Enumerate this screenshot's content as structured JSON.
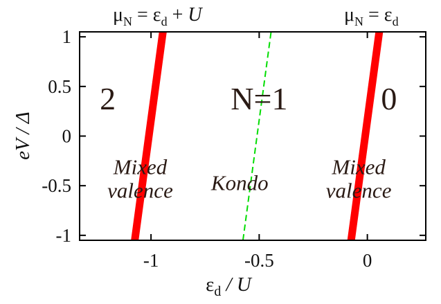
{
  "chart_data": {
    "type": "line",
    "xlabel": {
      "main": "ε",
      "sub": "d",
      "rest": " / U"
    },
    "ylabel": "eV / Δ",
    "xlim": [
      -1.33,
      0.27
    ],
    "ylim": [
      -1.05,
      1.05
    ],
    "x_ticks": [
      {
        "value": -1,
        "label": "-1"
      },
      {
        "value": -0.5,
        "label": "-0.5"
      },
      {
        "value": 0,
        "label": "0"
      }
    ],
    "y_ticks": [
      {
        "value": 1,
        "label": "1"
      },
      {
        "value": 0.5,
        "label": "0.5"
      },
      {
        "value": 0,
        "label": "0"
      },
      {
        "value": -0.5,
        "label": "-0.5"
      },
      {
        "value": -1,
        "label": "-1"
      }
    ],
    "series": [
      {
        "style": "solid-thick",
        "color": "#ff0000",
        "points": [
          [
            -1.075,
            -1.05
          ],
          [
            -0.945,
            1.05
          ]
        ]
      },
      {
        "style": "dashed",
        "color": "#00dd00",
        "points": [
          [
            -0.575,
            -1.05
          ],
          [
            -0.445,
            1.05
          ]
        ]
      },
      {
        "style": "solid-thick",
        "color": "#ff0000",
        "points": [
          [
            -0.075,
            -1.05
          ],
          [
            0.055,
            1.05
          ]
        ]
      }
    ],
    "region_labels": [
      {
        "text": "2",
        "x": -1.2,
        "y": 0.27,
        "style": "large"
      },
      {
        "text": "N=1",
        "x": -0.5,
        "y": 0.27,
        "style": "large"
      },
      {
        "text": "0",
        "x": 0.1,
        "y": 0.27,
        "style": "large"
      }
    ],
    "annotations": [
      {
        "lines": [
          "Mixed",
          "valence"
        ],
        "x": -1.05,
        "y": -0.49
      },
      {
        "lines": [
          "Kondo"
        ],
        "x": -0.59,
        "y": -0.49
      },
      {
        "lines": [
          "Mixed",
          "valence"
        ],
        "x": -0.04,
        "y": -0.49
      }
    ],
    "top_labels": [
      {
        "mu": "μ",
        "mu_sub": "N",
        "eq": " = ε",
        "eps_sub": "d",
        "plus": " + ",
        "U": "U"
      },
      {
        "mu": "μ",
        "mu_sub": "N",
        "eq": " = ε",
        "eps_sub": "d"
      }
    ],
    "colors": {
      "red_line": "#ff0000",
      "green_line": "#00dd00",
      "text": "#2a1a14"
    }
  }
}
